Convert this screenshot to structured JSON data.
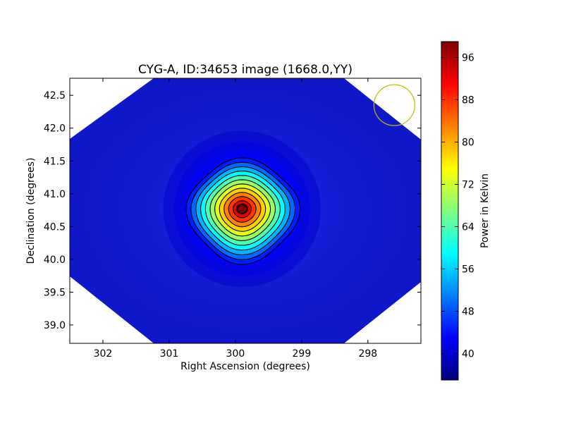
{
  "chart_data": {
    "type": "heatmap",
    "title": "CYG-A, ID:34653 image (1668.0,YY)",
    "xlabel": "Right Ascension (degrees)",
    "ylabel": "Declination (degrees)",
    "xlim": [
      302.5,
      297.2
    ],
    "ylim": [
      38.72,
      42.76
    ],
    "x_inverted": true,
    "x_ticks": [
      302,
      301,
      300,
      299,
      298
    ],
    "y_ticks": [
      39.0,
      39.5,
      40.0,
      40.5,
      41.0,
      41.5,
      42.0,
      42.5
    ],
    "colormap": "jet",
    "colorbar": {
      "label": "Power in Kelvin",
      "range": [
        35,
        99
      ],
      "ticks": [
        40,
        48,
        56,
        64,
        72,
        80,
        88,
        96
      ]
    },
    "source_peak": {
      "ra": 299.9,
      "dec": 40.77,
      "value": 99
    },
    "background_level": 38,
    "contours": {
      "count": 12,
      "color": "#000000"
    },
    "beam_marker": {
      "ra": 297.6,
      "dec": 42.35,
      "color": "#bfbf00"
    },
    "grid": false
  }
}
